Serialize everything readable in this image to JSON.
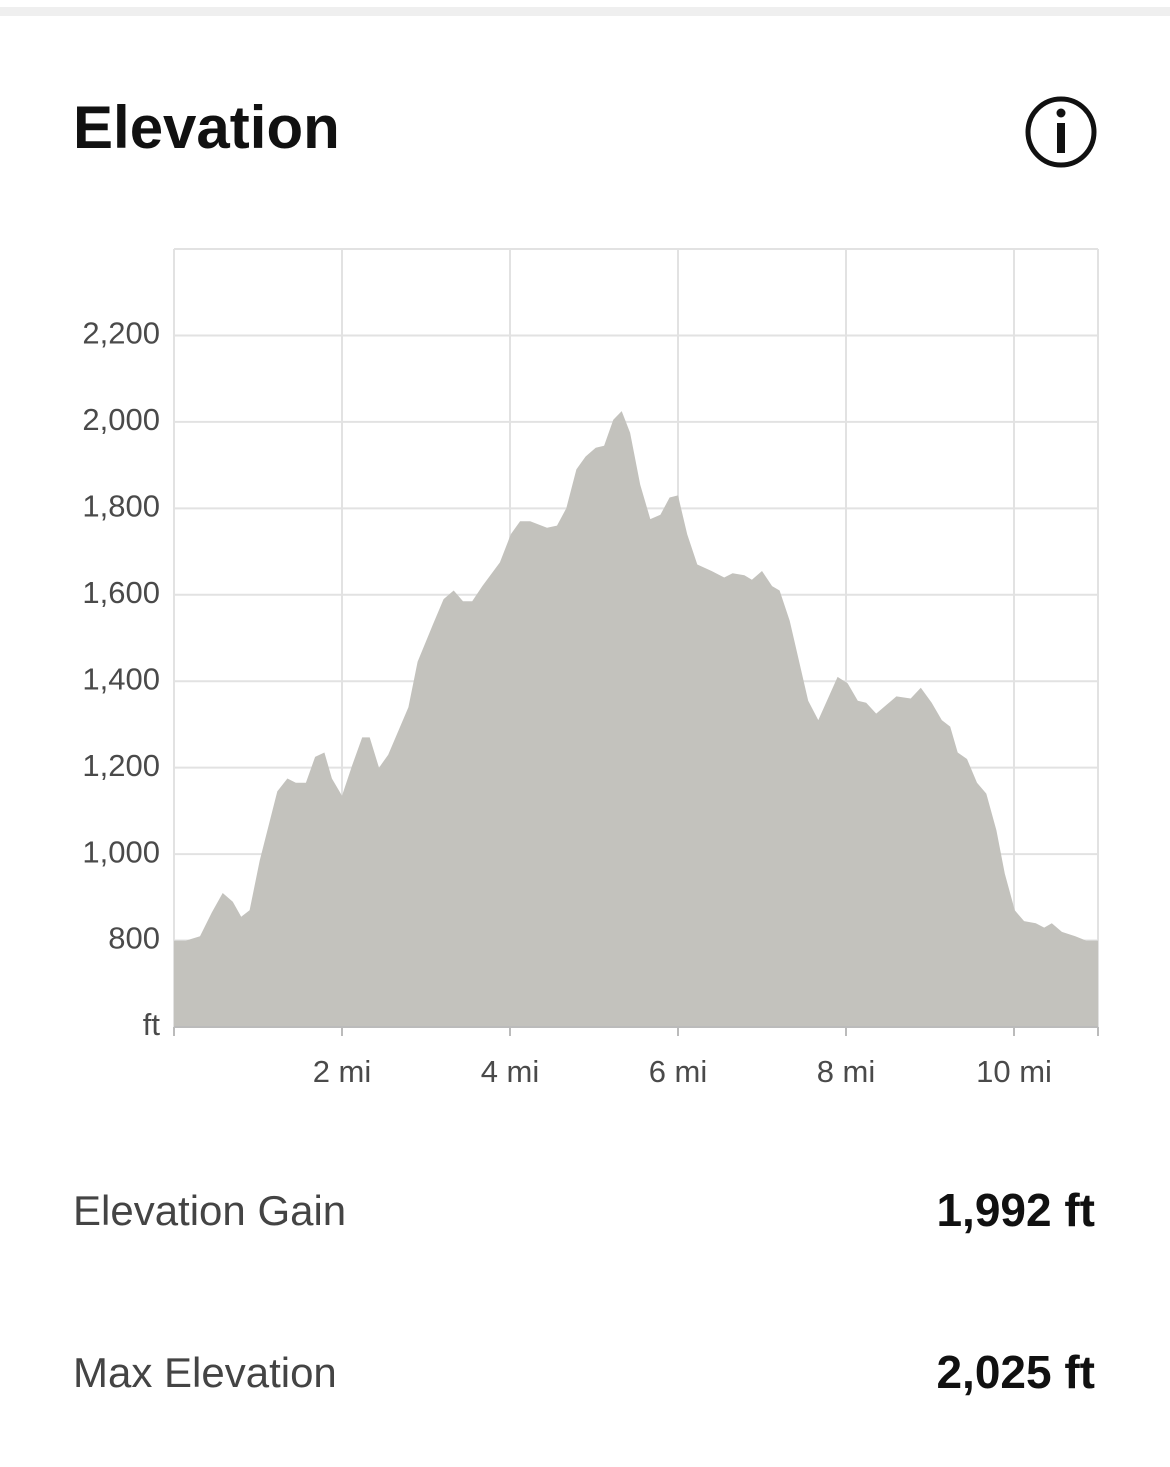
{
  "header": {
    "title": "Elevation"
  },
  "chart_data": {
    "type": "area",
    "color": "#c3c2bd",
    "grid": true,
    "x": [
      0,
      0.14,
      0.31,
      0.45,
      0.58,
      0.7,
      0.8,
      0.9,
      1.02,
      1.23,
      1.35,
      1.45,
      1.57,
      1.68,
      1.79,
      1.88,
      2.0,
      2.12,
      2.24,
      2.33,
      2.44,
      2.55,
      2.79,
      2.9,
      3.08,
      3.21,
      3.33,
      3.44,
      3.55,
      3.67,
      3.88,
      4.01,
      4.12,
      4.24,
      4.44,
      4.56,
      4.67,
      4.79,
      4.9,
      5.02,
      5.12,
      5.23,
      5.33,
      5.43,
      5.55,
      5.67,
      5.79,
      5.9,
      6.0,
      6.11,
      6.23,
      6.4,
      6.55,
      6.65,
      6.79,
      6.88,
      7.0,
      7.12,
      7.21,
      7.33,
      7.55,
      7.67,
      7.9,
      8.02,
      8.14,
      8.24,
      8.36,
      8.48,
      8.6,
      8.77,
      8.89,
      9.02,
      9.14,
      9.24,
      9.33,
      9.44,
      9.56,
      9.67,
      9.79,
      9.89,
      10.01,
      10.12,
      10.26,
      10.36,
      10.45,
      10.57,
      10.73,
      10.86,
      11.0
    ],
    "values": [
      800,
      800,
      810,
      865,
      910,
      890,
      855,
      870,
      985,
      1145,
      1175,
      1165,
      1165,
      1225,
      1235,
      1175,
      1135,
      1205,
      1270,
      1270,
      1200,
      1230,
      1340,
      1445,
      1530,
      1590,
      1610,
      1585,
      1585,
      1620,
      1675,
      1740,
      1770,
      1770,
      1755,
      1760,
      1800,
      1890,
      1920,
      1940,
      1945,
      2005,
      2025,
      1975,
      1855,
      1775,
      1785,
      1825,
      1830,
      1740,
      1670,
      1655,
      1640,
      1650,
      1645,
      1635,
      1655,
      1620,
      1610,
      1540,
      1355,
      1310,
      1410,
      1395,
      1355,
      1350,
      1325,
      1345,
      1365,
      1360,
      1385,
      1350,
      1310,
      1295,
      1235,
      1220,
      1165,
      1140,
      1055,
      955,
      870,
      845,
      840,
      830,
      840,
      820,
      810,
      800,
      800
    ],
    "xlim": [
      0,
      11
    ],
    "xticks": [
      {
        "value": 2,
        "label": "2 mi"
      },
      {
        "value": 4,
        "label": "4 mi"
      },
      {
        "value": 6,
        "label": "6 mi"
      },
      {
        "value": 8,
        "label": "8 mi"
      },
      {
        "value": 10,
        "label": "10 mi"
      }
    ],
    "ylim": [
      600,
      2400
    ],
    "yticks": [
      {
        "value": 600,
        "label": "ft"
      },
      {
        "value": 800,
        "label": "800"
      },
      {
        "value": 1000,
        "label": "1,000"
      },
      {
        "value": 1200,
        "label": "1,200"
      },
      {
        "value": 1400,
        "label": "1,400"
      },
      {
        "value": 1600,
        "label": "1,600"
      },
      {
        "value": 1800,
        "label": "1,800"
      },
      {
        "value": 2000,
        "label": "2,000"
      },
      {
        "value": 2200,
        "label": "2,200"
      }
    ]
  },
  "stats": [
    {
      "label": "Elevation Gain",
      "value": "1,992 ft"
    },
    {
      "label": "Max Elevation",
      "value": "2,025 ft"
    }
  ]
}
